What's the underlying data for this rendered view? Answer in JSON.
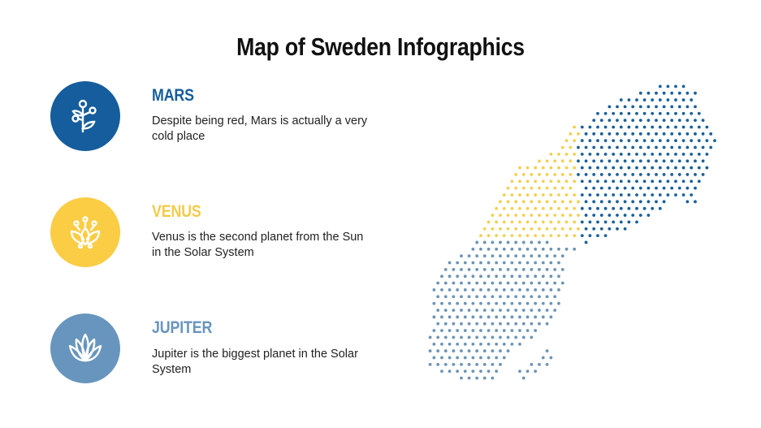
{
  "title": "Map of Sweden Infographics",
  "items": [
    {
      "heading": "MARS",
      "text": "Despite being red, Mars is actually a very cold place",
      "color": "#155d9c",
      "icon": "plant-branch-icon"
    },
    {
      "heading": "VENUS",
      "text": "Venus is the second planet from the Sun in the Solar System",
      "color": "#fbcd45",
      "icon": "lotus-flower-icon"
    },
    {
      "heading": "JUPITER",
      "text": "Jupiter is the biggest planet in the Solar System",
      "color": "#6895bd",
      "icon": "succulent-icon"
    }
  ],
  "map": {
    "regions": [
      {
        "name": "north",
        "color": "#1b5f98"
      },
      {
        "name": "central",
        "color": "#f3cf52"
      },
      {
        "name": "south",
        "color": "#6d93b5"
      }
    ]
  }
}
